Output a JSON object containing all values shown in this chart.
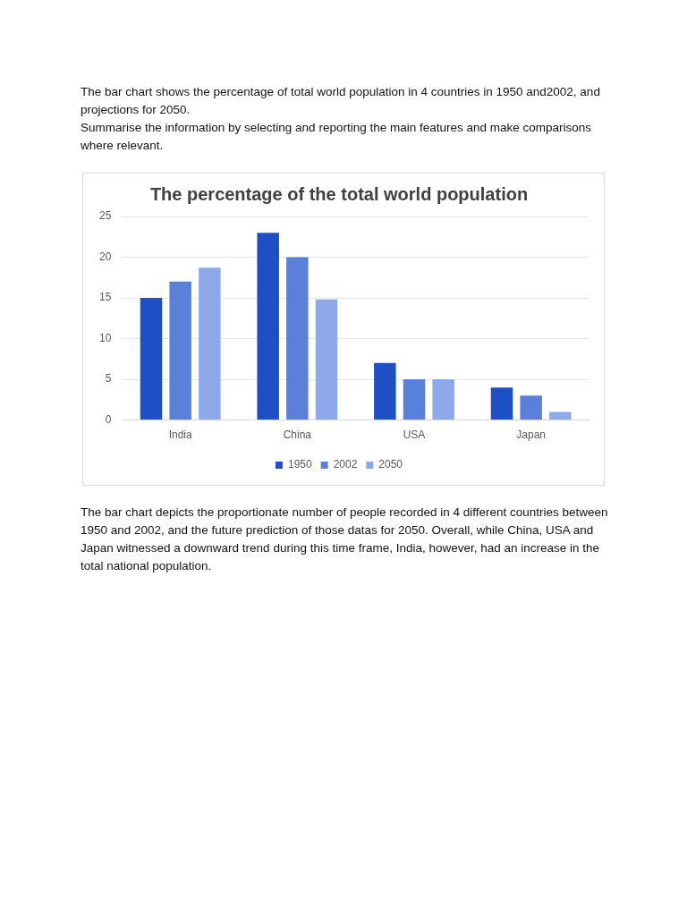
{
  "chart_data": {
    "type": "bar",
    "title": "The percentage of the total world population",
    "categories": [
      "India",
      "China",
      "USA",
      "Japan"
    ],
    "series": [
      {
        "name": "1950",
        "color": "#1f4fc4",
        "values": [
          15,
          23,
          7,
          4
        ]
      },
      {
        "name": "2002",
        "color": "#5b80da",
        "values": [
          17,
          20,
          5,
          3
        ]
      },
      {
        "name": "2050",
        "color": "#8ea9ea",
        "values": [
          18.7,
          14.8,
          5,
          1
        ]
      }
    ],
    "ylim": [
      0,
      25
    ],
    "yticks": [
      0,
      5,
      10,
      15,
      20,
      25
    ],
    "grid": "y",
    "legend": "bottom",
    "annotations": [
      "The bar chart shows the percentage of total world population in 4 countries in 1950 and2002, and projections for 2050.",
      "Summarise the information by selecting and reporting the main features and make comparisons where relevant.",
      "The bar chart depicts the proportionate number of people recorded in 4 different countries between 1950 and 2002, and the future prediction of those datas for 2050. Overall, while China, USA and Japan witnessed a downward trend during this time frame, India, however, had an increase in the total national population."
    ]
  }
}
